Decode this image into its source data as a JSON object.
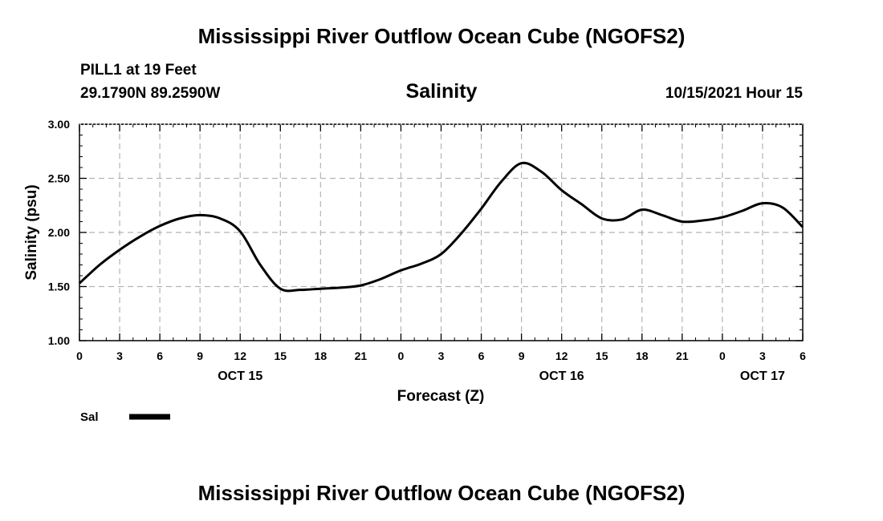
{
  "header": {
    "title": "Mississippi River Outflow Ocean Cube (NGOFS2)",
    "station": "PILL1 at 19 Feet",
    "coords": "29.1790N  89.2590W",
    "variable": "Salinity",
    "timestamp": "10/15/2021 Hour 15"
  },
  "footer": {
    "title": "Mississippi River Outflow Ocean Cube (NGOFS2)"
  },
  "chart_data": {
    "type": "line",
    "title": "Salinity",
    "xlabel": "Forecast (Z)",
    "ylabel": "Salinity (psu)",
    "ylim": [
      1.0,
      3.0
    ],
    "xlim": [
      0,
      54
    ],
    "grid": true,
    "y_ticks": [
      "1.00",
      "1.50",
      "2.00",
      "2.50",
      "3.00"
    ],
    "y_tick_values": [
      1.0,
      1.5,
      2.0,
      2.5,
      3.0
    ],
    "x_ticks": [
      "0",
      "3",
      "6",
      "9",
      "12",
      "15",
      "18",
      "21",
      "0",
      "3",
      "6",
      "9",
      "12",
      "15",
      "18",
      "21",
      "0",
      "3",
      "6"
    ],
    "date_labels": [
      {
        "label": "OCT 15",
        "hour": 12
      },
      {
        "label": "OCT 16",
        "hour": 36
      },
      {
        "label": "OCT 17",
        "hour": 51
      }
    ],
    "legend": {
      "label": "Sal",
      "position": "bottom-left"
    },
    "series": [
      {
        "name": "Sal",
        "color": "#000000",
        "x": [
          0,
          1.5,
          3,
          4.5,
          6,
          7.5,
          9,
          10.5,
          12,
          13.5,
          15,
          16.5,
          18,
          19.5,
          21,
          22.5,
          24,
          25.5,
          27,
          28.5,
          30,
          31.5,
          33,
          34.5,
          36,
          37.5,
          39,
          40.5,
          42,
          43.5,
          45,
          46.5,
          48,
          49.5,
          51,
          52.5,
          54
        ],
        "y": [
          1.53,
          1.7,
          1.84,
          1.96,
          2.06,
          2.13,
          2.16,
          2.13,
          2.01,
          1.7,
          1.48,
          1.47,
          1.48,
          1.49,
          1.51,
          1.57,
          1.65,
          1.71,
          1.8,
          1.99,
          2.22,
          2.47,
          2.64,
          2.56,
          2.39,
          2.26,
          2.13,
          2.12,
          2.21,
          2.16,
          2.1,
          2.11,
          2.14,
          2.2,
          2.27,
          2.23,
          2.05
        ]
      }
    ]
  }
}
